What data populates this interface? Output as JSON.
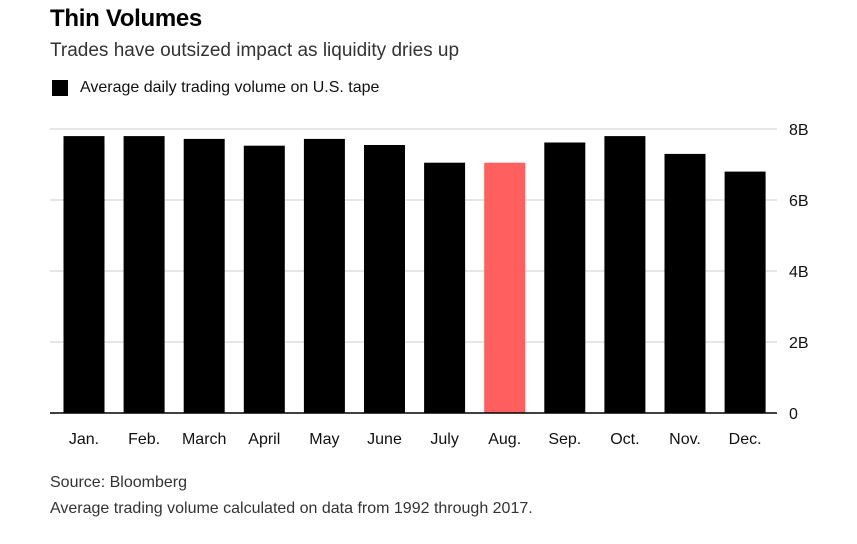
{
  "header": {
    "title": "Thin Volumes",
    "subtitle": "Trades have outsized impact as liquidity dries up"
  },
  "legend": {
    "label": "Average daily trading volume on U.S. tape",
    "color": "#000000"
  },
  "footer": {
    "source": "Source: Bloomberg",
    "note": "Average trading volume calculated on data from 1992 through 2017."
  },
  "chart_data": {
    "type": "bar",
    "categories": [
      "Jan.",
      "Feb.",
      "March",
      "April",
      "May",
      "June",
      "July",
      "Aug.",
      "Sep.",
      "Oct.",
      "Nov.",
      "Dec."
    ],
    "series": [
      {
        "name": "Average daily trading volume on U.S. tape",
        "values": [
          7.8,
          7.8,
          7.72,
          7.53,
          7.72,
          7.55,
          7.05,
          7.05,
          7.62,
          7.8,
          7.3,
          6.8
        ],
        "color": "#000000",
        "highlight_index": 7,
        "highlight_color": "#ff5f5f"
      }
    ],
    "ylim": [
      0,
      8
    ],
    "yticks": [
      {
        "value": 0,
        "label": "0"
      },
      {
        "value": 2,
        "label": "2B"
      },
      {
        "value": 4,
        "label": "4B"
      },
      {
        "value": 6,
        "label": "6B"
      },
      {
        "value": 8,
        "label": "8B"
      }
    ],
    "grid": true,
    "y_axis_position": "right",
    "gridline_color": "#cccccc",
    "axis_color": "#000000"
  }
}
